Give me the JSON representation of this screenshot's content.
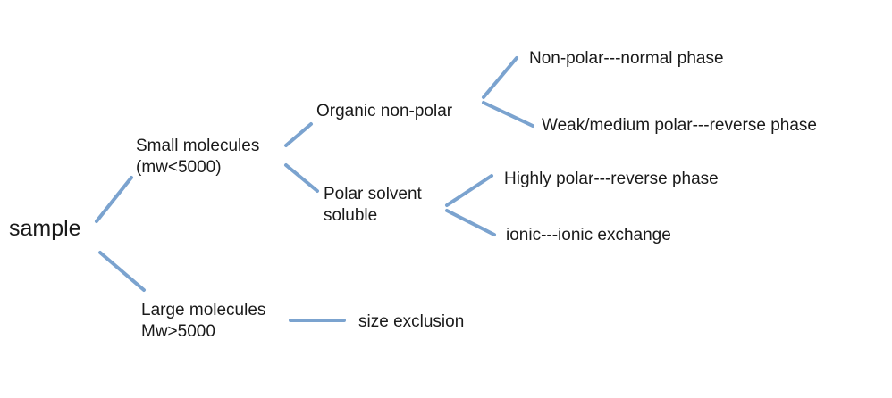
{
  "root": {
    "label": "sample"
  },
  "branches": {
    "small": {
      "lines": [
        "Small molecules",
        "(mw<5000)"
      ],
      "organic": {
        "label": "Organic non-polar",
        "children": [
          "Non-polar---normal phase",
          "Weak/medium polar---reverse phase"
        ]
      },
      "polar": {
        "lines": [
          "Polar solvent",
          "soluble"
        ],
        "children": [
          "Highly polar---reverse phase",
          "ionic---ionic exchange"
        ]
      }
    },
    "large": {
      "lines": [
        "Large molecules",
        "Mw>5000"
      ],
      "child": "size exclusion"
    }
  },
  "colors": {
    "connector": "#7ba3cf",
    "text": "#1a1a1a",
    "background": "#ffffff"
  }
}
